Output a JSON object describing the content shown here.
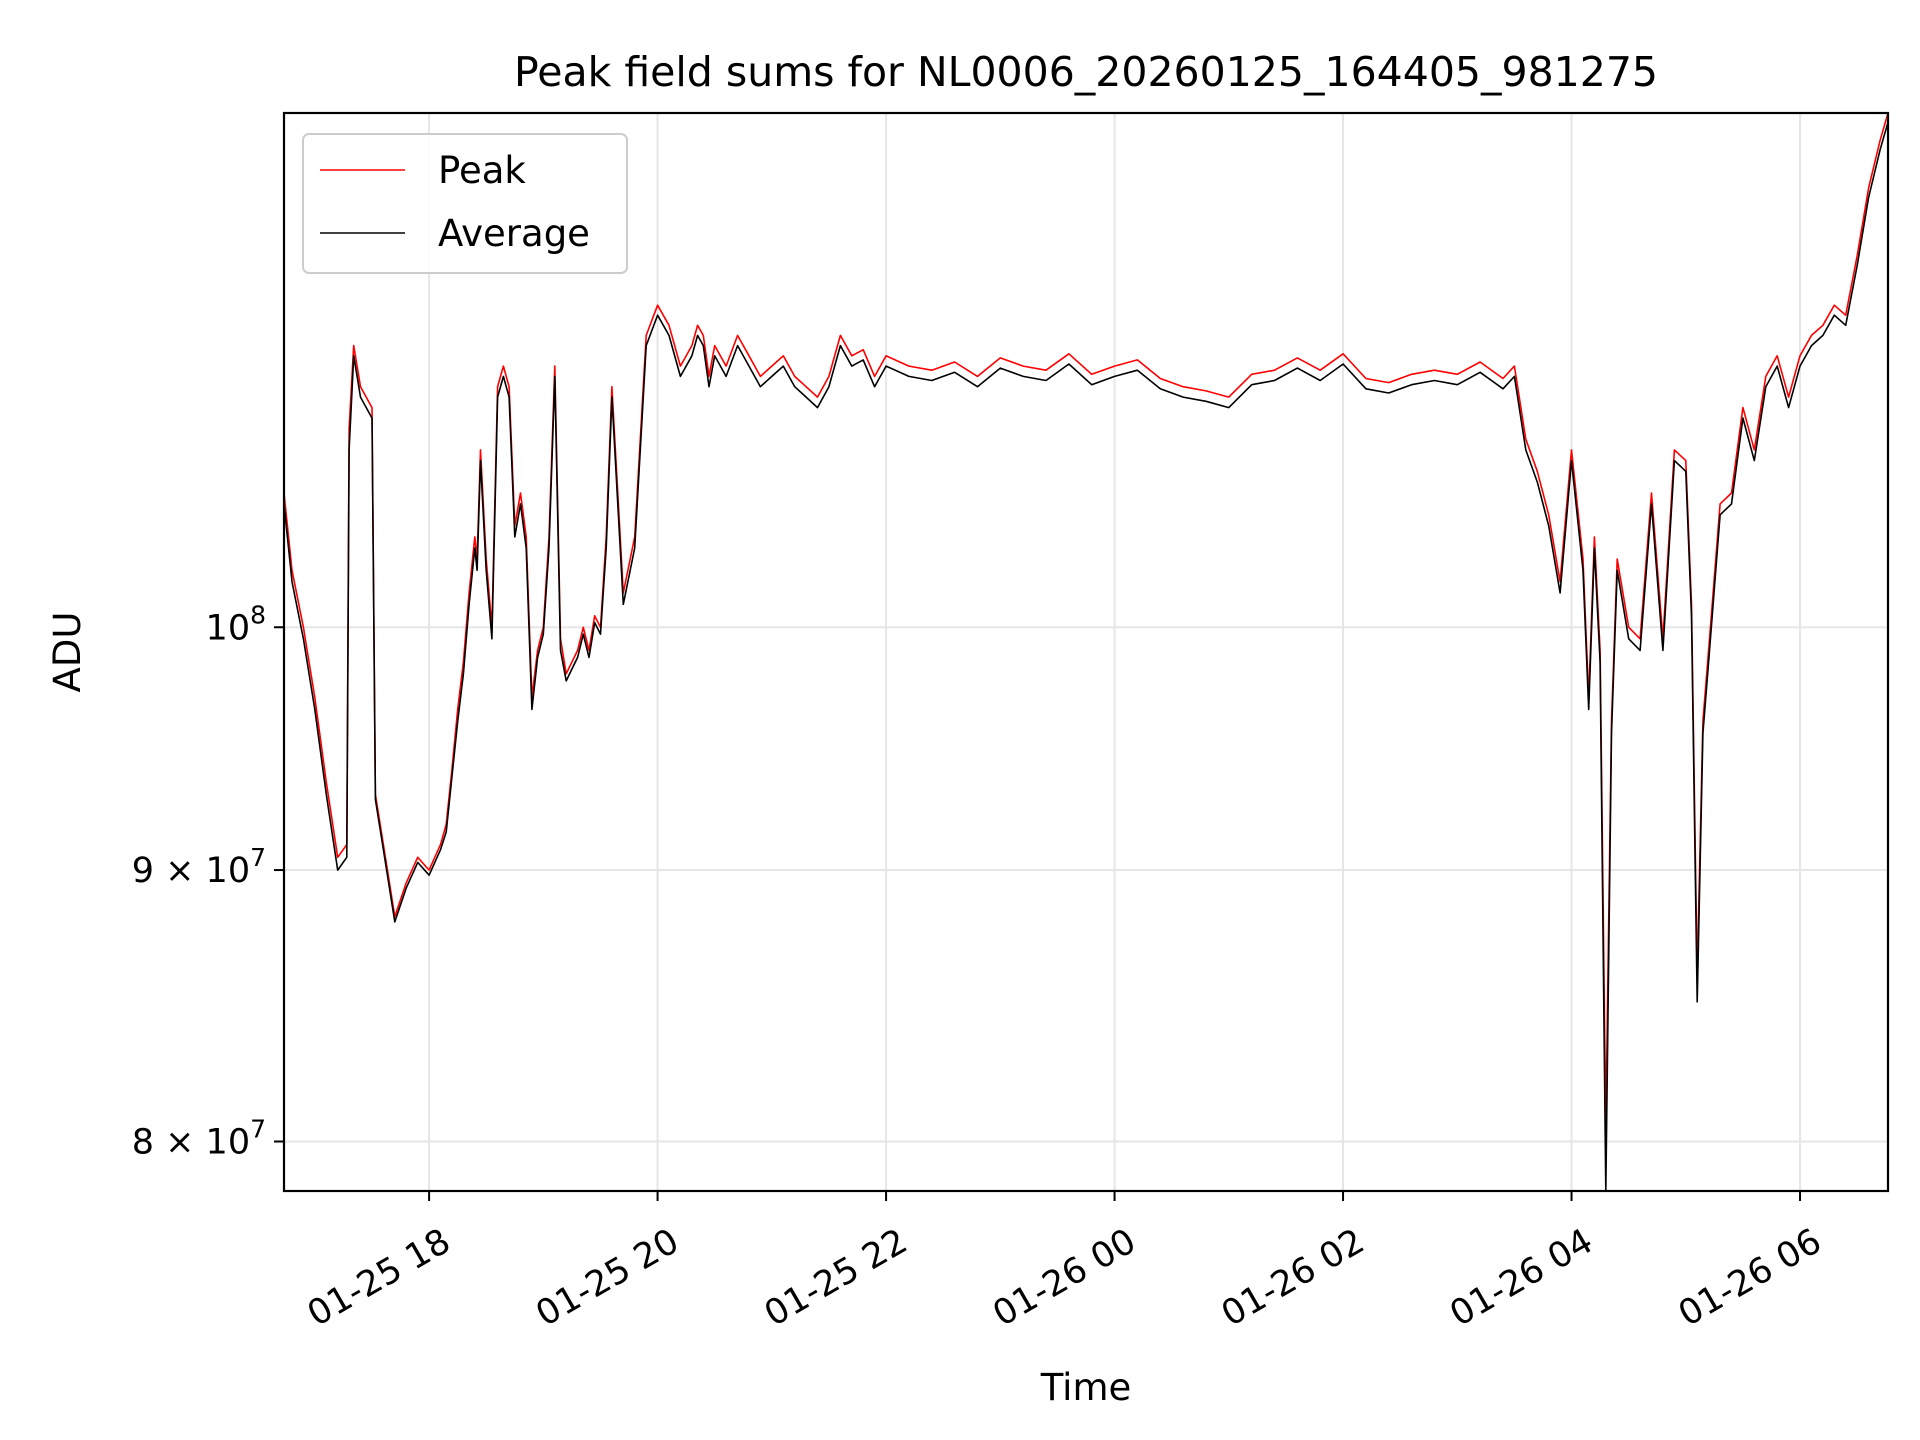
{
  "chart_data": {
    "type": "line",
    "title": "Peak field sums for NL0006_20260125_164405_981275",
    "xlabel": "Time",
    "ylabel": "ADU",
    "yscale": "log",
    "grid": true,
    "legend_position": "upper-left",
    "xlim_hours": [
      -1.27,
      12.77
    ],
    "ylim": [
      78300000,
      125000000
    ],
    "x_ticks": [
      {
        "hour": 0,
        "label": "01-25 18"
      },
      {
        "hour": 2,
        "label": "01-25 20"
      },
      {
        "hour": 4,
        "label": "01-25 22"
      },
      {
        "hour": 6,
        "label": "01-26 00"
      },
      {
        "hour": 8,
        "label": "01-26 02"
      },
      {
        "hour": 10,
        "label": "01-26 04"
      },
      {
        "hour": 12,
        "label": "01-26 06"
      }
    ],
    "y_ticks": [
      {
        "value": 80000000,
        "base": "8 × 10",
        "exp": "7"
      },
      {
        "value": 90000000,
        "base": "9 × 10",
        "exp": "7"
      },
      {
        "value": 100000000,
        "base": "10",
        "exp": "8"
      }
    ],
    "x_hours_note": "hours relative to 01-25 18:00",
    "series": [
      {
        "name": "Peak",
        "color": "#ff0000",
        "x": [
          -1.27,
          -1.2,
          -1.1,
          -1.0,
          -0.9,
          -0.8,
          -0.72,
          -0.7,
          -0.66,
          -0.6,
          -0.5,
          -0.47,
          -0.4,
          -0.3,
          -0.2,
          -0.1,
          0.0,
          0.1,
          0.15,
          0.2,
          0.25,
          0.3,
          0.35,
          0.4,
          0.42,
          0.45,
          0.5,
          0.55,
          0.6,
          0.65,
          0.7,
          0.75,
          0.8,
          0.85,
          0.9,
          0.95,
          1.0,
          1.05,
          1.1,
          1.15,
          1.2,
          1.3,
          1.35,
          1.4,
          1.45,
          1.5,
          1.55,
          1.6,
          1.7,
          1.8,
          1.9,
          2.0,
          2.1,
          2.2,
          2.3,
          2.35,
          2.4,
          2.45,
          2.5,
          2.6,
          2.7,
          2.8,
          2.9,
          3.0,
          3.1,
          3.2,
          3.3,
          3.4,
          3.5,
          3.6,
          3.7,
          3.8,
          3.9,
          4.0,
          4.2,
          4.4,
          4.6,
          4.8,
          5.0,
          5.2,
          5.4,
          5.6,
          5.8,
          6.0,
          6.2,
          6.4,
          6.6,
          6.8,
          7.0,
          7.2,
          7.4,
          7.6,
          7.8,
          8.0,
          8.2,
          8.4,
          8.6,
          8.8,
          9.0,
          9.2,
          9.4,
          9.5,
          9.6,
          9.7,
          9.8,
          9.9,
          10.0,
          10.1,
          10.15,
          10.2,
          10.25,
          10.3,
          10.35,
          10.4,
          10.5,
          10.6,
          10.7,
          10.8,
          10.9,
          11.0,
          11.05,
          11.1,
          11.15,
          11.2,
          11.3,
          11.4,
          11.5,
          11.6,
          11.7,
          11.8,
          11.9,
          12.0,
          12.1,
          12.2,
          12.3,
          12.4,
          12.5,
          12.6,
          12.7,
          12.77
        ],
        "values": [
          106000000,
          102500000,
          100000000,
          97000000,
          93500000,
          90500000,
          91000000,
          109000000,
          113000000,
          111000000,
          110000000,
          93000000,
          91000000,
          88200000,
          89500000,
          90500000,
          90000000,
          91000000,
          91800000,
          94000000,
          96500000,
          98500000,
          101500000,
          104000000,
          103000000,
          108000000,
          103000000,
          100000000,
          111000000,
          112000000,
          111000000,
          104500000,
          106000000,
          104000000,
          97000000,
          99000000,
          100000000,
          104000000,
          112000000,
          99500000,
          98000000,
          99000000,
          100000000,
          99000000,
          100500000,
          100000000,
          104000000,
          111000000,
          101500000,
          104000000,
          113500000,
          115000000,
          114000000,
          112000000,
          113000000,
          114000000,
          113500000,
          111500000,
          113000000,
          112000000,
          113500000,
          112500000,
          111500000,
          112000000,
          112500000,
          111500000,
          111000000,
          110500000,
          111500000,
          113500000,
          112500000,
          112800000,
          111500000,
          112500000,
          112000000,
          111800000,
          112200000,
          111500000,
          112400000,
          112000000,
          111800000,
          112600000,
          111600000,
          112000000,
          112300000,
          111400000,
          111000000,
          110800000,
          110500000,
          111600000,
          111800000,
          112400000,
          111800000,
          112600000,
          111400000,
          111200000,
          111600000,
          111800000,
          111600000,
          112200000,
          111400000,
          112000000,
          108500000,
          107000000,
          105000000,
          102000000,
          108000000,
          103000000,
          97000000,
          104000000,
          99000000,
          80500000,
          96000000,
          103000000,
          100000000,
          99500000,
          106000000,
          99500000,
          108000000,
          107500000,
          101000000,
          86000000,
          96000000,
          99000000,
          105500000,
          106000000,
          110000000,
          108000000,
          111500000,
          112500000,
          110500000,
          112500000,
          113500000,
          114000000,
          115000000,
          114500000,
          117500000,
          121000000,
          123500000,
          125000000
        ]
      },
      {
        "name": "Average",
        "color": "#000000",
        "x": [
          -1.27,
          -1.2,
          -1.1,
          -1.0,
          -0.9,
          -0.8,
          -0.72,
          -0.7,
          -0.66,
          -0.6,
          -0.5,
          -0.47,
          -0.4,
          -0.3,
          -0.2,
          -0.1,
          0.0,
          0.1,
          0.15,
          0.2,
          0.25,
          0.3,
          0.35,
          0.4,
          0.42,
          0.45,
          0.5,
          0.55,
          0.6,
          0.65,
          0.7,
          0.75,
          0.8,
          0.85,
          0.9,
          0.95,
          1.0,
          1.05,
          1.1,
          1.15,
          1.2,
          1.3,
          1.35,
          1.4,
          1.45,
          1.5,
          1.55,
          1.6,
          1.7,
          1.8,
          1.9,
          2.0,
          2.1,
          2.2,
          2.3,
          2.35,
          2.4,
          2.45,
          2.5,
          2.6,
          2.7,
          2.8,
          2.9,
          3.0,
          3.1,
          3.2,
          3.3,
          3.4,
          3.5,
          3.6,
          3.7,
          3.8,
          3.9,
          4.0,
          4.2,
          4.4,
          4.6,
          4.8,
          5.0,
          5.2,
          5.4,
          5.6,
          5.8,
          6.0,
          6.2,
          6.4,
          6.6,
          6.8,
          7.0,
          7.2,
          7.4,
          7.6,
          7.8,
          8.0,
          8.2,
          8.4,
          8.6,
          8.8,
          9.0,
          9.2,
          9.4,
          9.5,
          9.6,
          9.7,
          9.8,
          9.9,
          10.0,
          10.1,
          10.15,
          10.2,
          10.25,
          10.3,
          10.35,
          10.4,
          10.5,
          10.6,
          10.7,
          10.8,
          10.9,
          11.0,
          11.05,
          11.1,
          11.15,
          11.2,
          11.3,
          11.4,
          11.5,
          11.6,
          11.7,
          11.8,
          11.9,
          12.0,
          12.1,
          12.2,
          12.3,
          12.4,
          12.5,
          12.6,
          12.7,
          12.77
        ],
        "values": [
          105500000,
          102000000,
          99500000,
          96500000,
          93000000,
          90000000,
          90500000,
          108000000,
          112500000,
          110500000,
          109500000,
          92800000,
          90800000,
          88000000,
          89300000,
          90300000,
          89800000,
          90800000,
          91500000,
          93700000,
          96000000,
          98000000,
          101000000,
          103500000,
          102500000,
          107500000,
          102500000,
          99500000,
          110500000,
          111500000,
          110500000,
          104000000,
          105500000,
          103500000,
          96500000,
          98700000,
          99700000,
          103500000,
          111500000,
          99000000,
          97700000,
          98700000,
          99700000,
          98700000,
          100200000,
          99700000,
          103500000,
          110500000,
          101000000,
          103500000,
          113000000,
          114500000,
          113500000,
          111500000,
          112500000,
          113500000,
          113000000,
          111000000,
          112500000,
          111500000,
          113000000,
          112000000,
          111000000,
          111500000,
          112000000,
          111000000,
          110500000,
          110000000,
          111000000,
          113000000,
          112000000,
          112300000,
          111000000,
          112000000,
          111500000,
          111300000,
          111700000,
          111000000,
          111900000,
          111500000,
          111300000,
          112100000,
          111100000,
          111500000,
          111800000,
          110900000,
          110500000,
          110300000,
          110000000,
          111100000,
          111300000,
          111900000,
          111300000,
          112100000,
          110900000,
          110700000,
          111100000,
          111300000,
          111100000,
          111700000,
          110900000,
          111500000,
          108000000,
          106500000,
          104500000,
          101500000,
          107500000,
          102500000,
          96500000,
          103500000,
          98500000,
          78300000,
          95500000,
          102500000,
          99500000,
          99000000,
          105500000,
          99000000,
          107500000,
          107000000,
          100500000,
          85000000,
          95500000,
          98500000,
          105000000,
          105500000,
          109500000,
          107500000,
          111000000,
          112000000,
          110000000,
          112000000,
          113000000,
          113500000,
          114500000,
          114000000,
          117000000,
          120500000,
          123000000,
          124500000
        ]
      }
    ]
  }
}
